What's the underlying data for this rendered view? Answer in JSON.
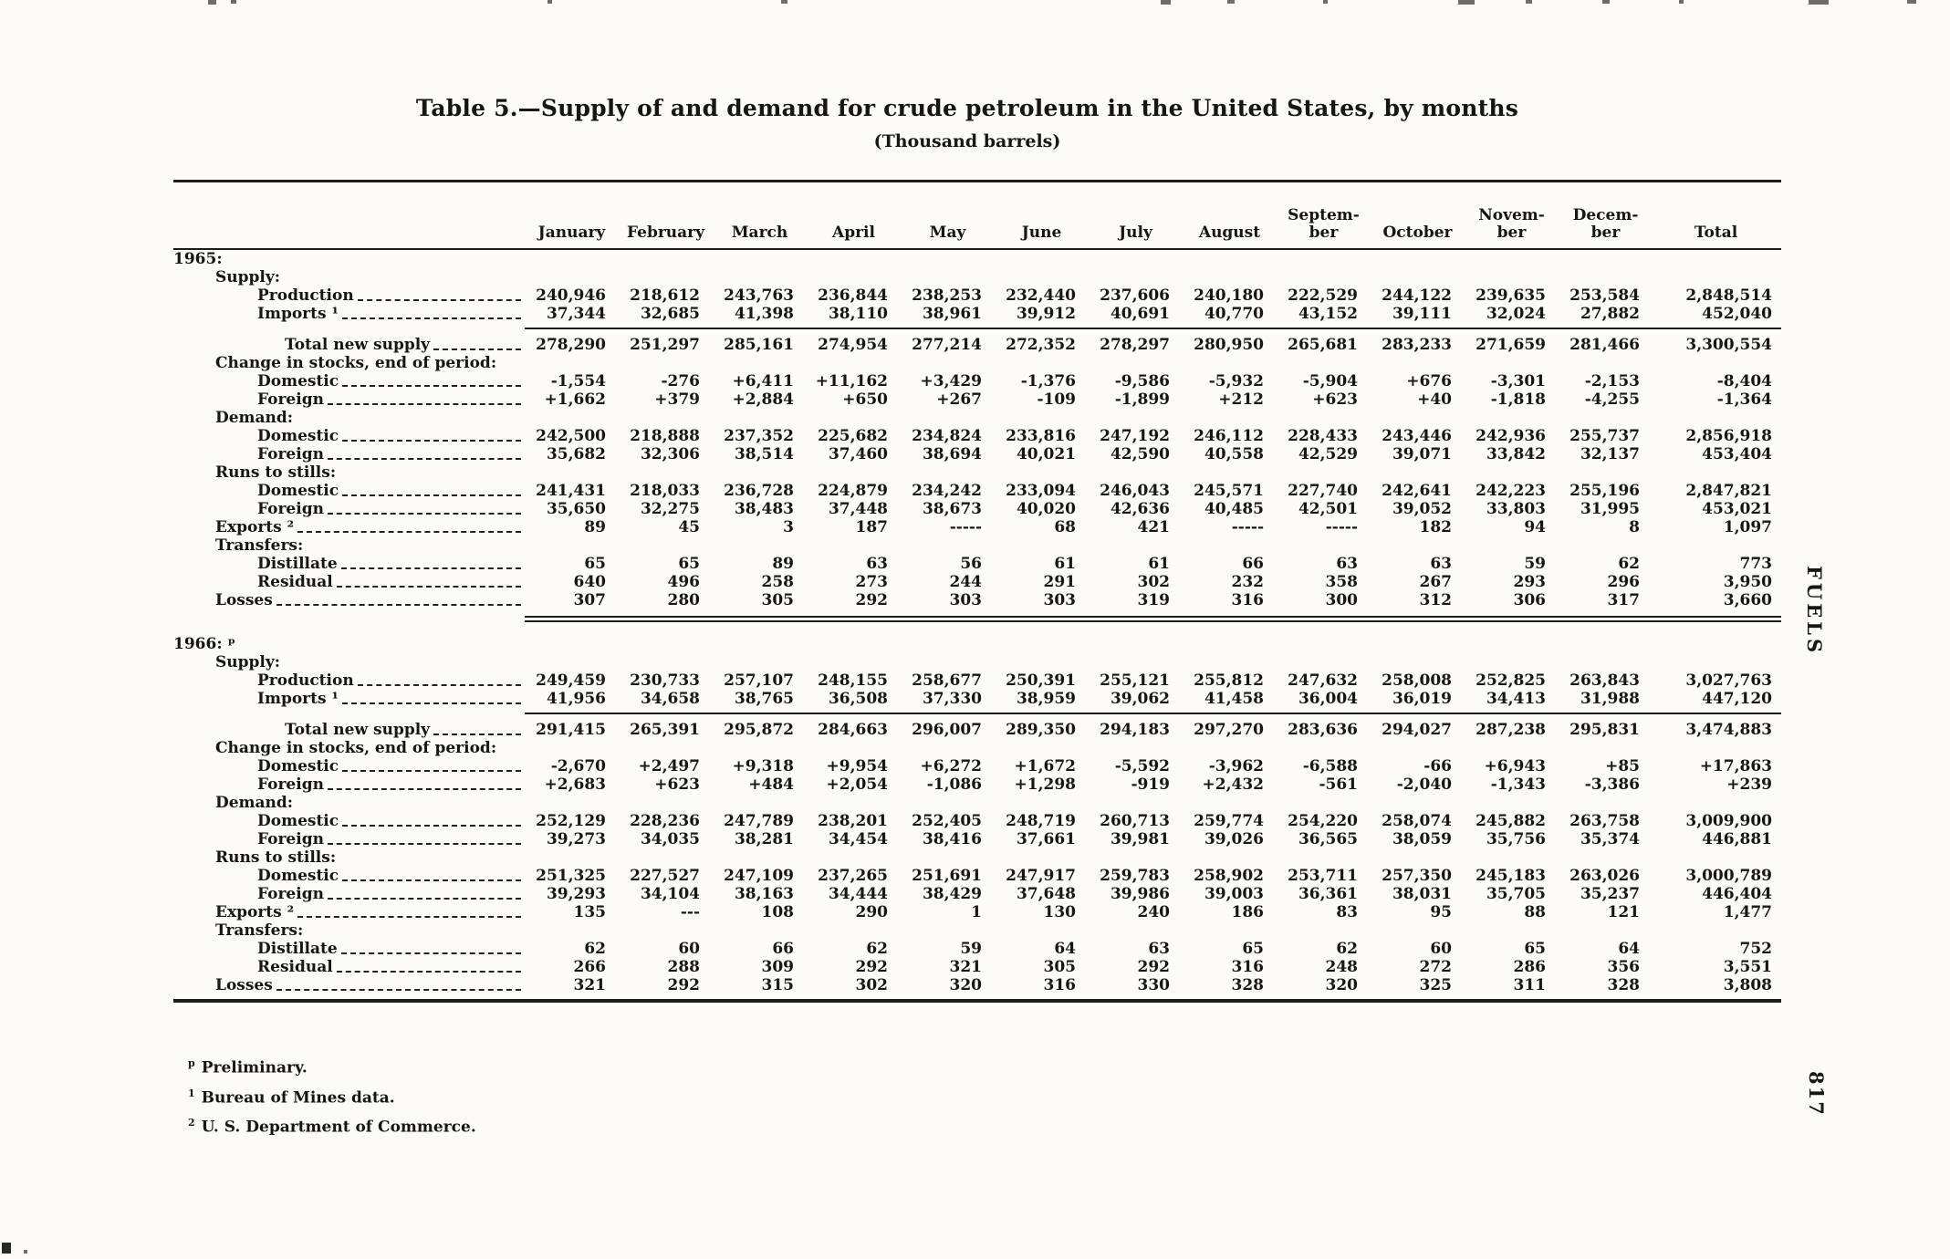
{
  "page": {
    "title": "Table 5.—Supply of and demand for crude petroleum in the United States, by months",
    "subtitle": "(Thousand barrels)",
    "side_label": "FUELS",
    "page_number": "817"
  },
  "table": {
    "columns": [
      "January",
      "February",
      "March",
      "April",
      "May",
      "June",
      "July",
      "August",
      "Septem-\nber",
      "October",
      "Novem-\nber",
      "Decem-\nber",
      "Total"
    ],
    "rows": [
      {
        "type": "year",
        "label": "1965:",
        "indent": 0
      },
      {
        "type": "group",
        "label": "Supply:",
        "indent": 1
      },
      {
        "type": "item",
        "label": "Production",
        "indent": 2,
        "values": [
          "240,946",
          "218,612",
          "243,763",
          "236,844",
          "238,253",
          "232,440",
          "237,606",
          "240,180",
          "222,529",
          "244,122",
          "239,635",
          "253,584",
          "2,848,514"
        ]
      },
      {
        "type": "item",
        "label": "Imports ¹",
        "indent": 2,
        "values": [
          "37,344",
          "32,685",
          "41,398",
          "38,110",
          "38,961",
          "39,912",
          "40,691",
          "40,770",
          "43,152",
          "39,111",
          "32,024",
          "27,882",
          "452,040"
        ]
      },
      {
        "type": "rule-partial"
      },
      {
        "type": "item",
        "label": "Total new supply",
        "indent": 3,
        "values": [
          "278,290",
          "251,297",
          "285,161",
          "274,954",
          "277,214",
          "272,352",
          "278,297",
          "280,950",
          "265,681",
          "283,233",
          "271,659",
          "281,466",
          "3,300,554"
        ]
      },
      {
        "type": "group",
        "label": "Change in stocks, end of period:",
        "indent": 1
      },
      {
        "type": "item",
        "label": "Domestic",
        "indent": 2,
        "values": [
          "-1,554",
          "-276",
          "+6,411",
          "+11,162",
          "+3,429",
          "-1,376",
          "-9,586",
          "-5,932",
          "-5,904",
          "+676",
          "-3,301",
          "-2,153",
          "-8,404"
        ]
      },
      {
        "type": "item",
        "label": "Foreign",
        "indent": 2,
        "values": [
          "+1,662",
          "+379",
          "+2,884",
          "+650",
          "+267",
          "-109",
          "-1,899",
          "+212",
          "+623",
          "+40",
          "-1,818",
          "-4,255",
          "-1,364"
        ]
      },
      {
        "type": "group",
        "label": "Demand:",
        "indent": 1
      },
      {
        "type": "item",
        "label": "Domestic",
        "indent": 2,
        "values": [
          "242,500",
          "218,888",
          "237,352",
          "225,682",
          "234,824",
          "233,816",
          "247,192",
          "246,112",
          "228,433",
          "243,446",
          "242,936",
          "255,737",
          "2,856,918"
        ]
      },
      {
        "type": "item",
        "label": "Foreign",
        "indent": 2,
        "values": [
          "35,682",
          "32,306",
          "38,514",
          "37,460",
          "38,694",
          "40,021",
          "42,590",
          "40,558",
          "42,529",
          "39,071",
          "33,842",
          "32,137",
          "453,404"
        ]
      },
      {
        "type": "group",
        "label": "Runs to stills:",
        "indent": 1
      },
      {
        "type": "item",
        "label": "Domestic",
        "indent": 2,
        "values": [
          "241,431",
          "218,033",
          "236,728",
          "224,879",
          "234,242",
          "233,094",
          "246,043",
          "245,571",
          "227,740",
          "242,641",
          "242,223",
          "255,196",
          "2,847,821"
        ]
      },
      {
        "type": "item",
        "label": "Foreign",
        "indent": 2,
        "values": [
          "35,650",
          "32,275",
          "38,483",
          "37,448",
          "38,673",
          "40,020",
          "42,636",
          "40,485",
          "42,501",
          "39,052",
          "33,803",
          "31,995",
          "453,021"
        ]
      },
      {
        "type": "item",
        "label": "Exports ²",
        "indent": 1,
        "values": [
          "89",
          "45",
          "3",
          "187",
          "-----",
          "68",
          "421",
          "-----",
          "-----",
          "182",
          "94",
          "8",
          "1,097"
        ]
      },
      {
        "type": "group",
        "label": "Transfers:",
        "indent": 1
      },
      {
        "type": "item",
        "label": "Distillate",
        "indent": 2,
        "values": [
          "65",
          "65",
          "89",
          "63",
          "56",
          "61",
          "61",
          "66",
          "63",
          "63",
          "59",
          "62",
          "773"
        ]
      },
      {
        "type": "item",
        "label": "Residual",
        "indent": 2,
        "values": [
          "640",
          "496",
          "258",
          "273",
          "244",
          "291",
          "302",
          "232",
          "358",
          "267",
          "293",
          "296",
          "3,950"
        ]
      },
      {
        "type": "item",
        "label": "Losses",
        "indent": 1,
        "values": [
          "307",
          "280",
          "305",
          "292",
          "303",
          "303",
          "319",
          "316",
          "300",
          "312",
          "306",
          "317",
          "3,660"
        ]
      },
      {
        "type": "rule-double"
      },
      {
        "type": "year",
        "label": "1966: ᵖ",
        "indent": 0
      },
      {
        "type": "group",
        "label": "Supply:",
        "indent": 1
      },
      {
        "type": "item",
        "label": "Production",
        "indent": 2,
        "values": [
          "249,459",
          "230,733",
          "257,107",
          "248,155",
          "258,677",
          "250,391",
          "255,121",
          "255,812",
          "247,632",
          "258,008",
          "252,825",
          "263,843",
          "3,027,763"
        ]
      },
      {
        "type": "item",
        "label": "Imports ¹",
        "indent": 2,
        "values": [
          "41,956",
          "34,658",
          "38,765",
          "36,508",
          "37,330",
          "38,959",
          "39,062",
          "41,458",
          "36,004",
          "36,019",
          "34,413",
          "31,988",
          "447,120"
        ]
      },
      {
        "type": "rule-partial"
      },
      {
        "type": "item",
        "label": "Total new supply",
        "indent": 3,
        "values": [
          "291,415",
          "265,391",
          "295,872",
          "284,663",
          "296,007",
          "289,350",
          "294,183",
          "297,270",
          "283,636",
          "294,027",
          "287,238",
          "295,831",
          "3,474,883"
        ]
      },
      {
        "type": "group",
        "label": "Change in stocks, end of period:",
        "indent": 1
      },
      {
        "type": "item",
        "label": "Domestic",
        "indent": 2,
        "values": [
          "-2,670",
          "+2,497",
          "+9,318",
          "+9,954",
          "+6,272",
          "+1,672",
          "-5,592",
          "-3,962",
          "-6,588",
          "-66",
          "+6,943",
          "+85",
          "+17,863"
        ]
      },
      {
        "type": "item",
        "label": "Foreign",
        "indent": 2,
        "values": [
          "+2,683",
          "+623",
          "+484",
          "+2,054",
          "-1,086",
          "+1,298",
          "-919",
          "+2,432",
          "-561",
          "-2,040",
          "-1,343",
          "-3,386",
          "+239"
        ]
      },
      {
        "type": "group",
        "label": "Demand:",
        "indent": 1
      },
      {
        "type": "item",
        "label": "Domestic",
        "indent": 2,
        "values": [
          "252,129",
          "228,236",
          "247,789",
          "238,201",
          "252,405",
          "248,719",
          "260,713",
          "259,774",
          "254,220",
          "258,074",
          "245,882",
          "263,758",
          "3,009,900"
        ]
      },
      {
        "type": "item",
        "label": "Foreign",
        "indent": 2,
        "values": [
          "39,273",
          "34,035",
          "38,281",
          "34,454",
          "38,416",
          "37,661",
          "39,981",
          "39,026",
          "36,565",
          "38,059",
          "35,756",
          "35,374",
          "446,881"
        ]
      },
      {
        "type": "group",
        "label": "Runs to stills:",
        "indent": 1
      },
      {
        "type": "item",
        "label": "Domestic",
        "indent": 2,
        "values": [
          "251,325",
          "227,527",
          "247,109",
          "237,265",
          "251,691",
          "247,917",
          "259,783",
          "258,902",
          "253,711",
          "257,350",
          "245,183",
          "263,026",
          "3,000,789"
        ]
      },
      {
        "type": "item",
        "label": "Foreign",
        "indent": 2,
        "values": [
          "39,293",
          "34,104",
          "38,163",
          "34,444",
          "38,429",
          "37,648",
          "39,986",
          "39,003",
          "36,361",
          "38,031",
          "35,705",
          "35,237",
          "446,404"
        ]
      },
      {
        "type": "item",
        "label": "Exports ²",
        "indent": 1,
        "values": [
          "135",
          "---",
          "108",
          "290",
          "1",
          "130",
          "240",
          "186",
          "83",
          "95",
          "88",
          "121",
          "1,477"
        ]
      },
      {
        "type": "group",
        "label": "Transfers:",
        "indent": 1
      },
      {
        "type": "item",
        "label": "Distillate",
        "indent": 2,
        "values": [
          "62",
          "60",
          "66",
          "62",
          "59",
          "64",
          "63",
          "65",
          "62",
          "60",
          "65",
          "64",
          "752"
        ]
      },
      {
        "type": "item",
        "label": "Residual",
        "indent": 2,
        "values": [
          "266",
          "288",
          "309",
          "292",
          "321",
          "305",
          "292",
          "316",
          "248",
          "272",
          "286",
          "356",
          "3,551"
        ]
      },
      {
        "type": "item",
        "label": "Losses",
        "indent": 1,
        "values": [
          "321",
          "292",
          "315",
          "302",
          "320",
          "316",
          "330",
          "328",
          "320",
          "325",
          "311",
          "328",
          "3,808"
        ]
      }
    ]
  },
  "footnotes": [
    {
      "marker": "p",
      "text": "Preliminary."
    },
    {
      "marker": "1",
      "text": "Bureau of Mines data."
    },
    {
      "marker": "2",
      "text": "U. S. Department of Commerce."
    }
  ]
}
